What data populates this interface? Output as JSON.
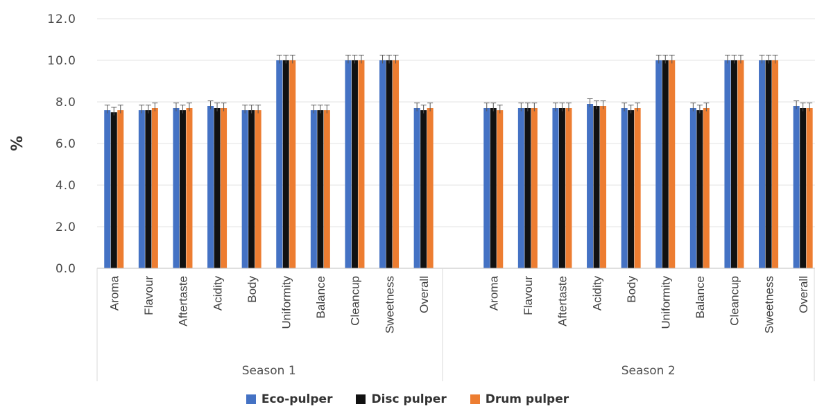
{
  "chart_data": {
    "type": "bar",
    "title": "",
    "xlabel": "",
    "ylabel": "%",
    "ylim": [
      0,
      12
    ],
    "yticks": [
      "0.0",
      "2.0",
      "4.0",
      "6.0",
      "8.0",
      "10.0",
      "12.0"
    ],
    "grid": true,
    "legend_position": "bottom",
    "groups": [
      "Season 1",
      "Season 2"
    ],
    "categories": [
      "Aroma",
      "Flavour",
      "Aftertaste",
      "Acidity",
      "Body",
      "Uniformity",
      "Balance",
      "Cleancup",
      "Sweetness",
      "Overall"
    ],
    "series": [
      {
        "name": "Eco-pulper",
        "color": "#4472c4",
        "values": [
          [
            7.6,
            7.6,
            7.7,
            7.8,
            7.6,
            10.0,
            7.6,
            10.0,
            10.0,
            7.7
          ],
          [
            7.7,
            7.7,
            7.7,
            7.9,
            7.7,
            10.0,
            7.7,
            10.0,
            10.0,
            7.8
          ]
        ]
      },
      {
        "name": "Disc pulper",
        "color": "#111111",
        "values": [
          [
            7.5,
            7.6,
            7.6,
            7.7,
            7.6,
            10.0,
            7.6,
            10.0,
            10.0,
            7.6
          ],
          [
            7.7,
            7.7,
            7.7,
            7.8,
            7.6,
            10.0,
            7.6,
            10.0,
            10.0,
            7.7
          ]
        ]
      },
      {
        "name": "Drum pulper",
        "color": "#ed7d31",
        "values": [
          [
            7.6,
            7.7,
            7.7,
            7.7,
            7.6,
            10.0,
            7.6,
            10.0,
            10.0,
            7.7
          ],
          [
            7.6,
            7.7,
            7.7,
            7.8,
            7.7,
            10.0,
            7.7,
            10.0,
            10.0,
            7.7
          ]
        ]
      }
    ]
  }
}
